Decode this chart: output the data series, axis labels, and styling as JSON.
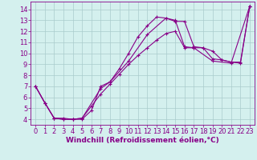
{
  "background_color": "#d4f0ee",
  "grid_color": "#aacccc",
  "line_color": "#880088",
  "xlabel": "Windchill (Refroidissement éolien,°C)",
  "xlim": [
    -0.5,
    23.5
  ],
  "ylim": [
    3.5,
    14.7
  ],
  "yticks": [
    4,
    5,
    6,
    7,
    8,
    9,
    10,
    11,
    12,
    13,
    14
  ],
  "xticks": [
    0,
    1,
    2,
    3,
    4,
    5,
    6,
    7,
    8,
    9,
    10,
    11,
    12,
    13,
    14,
    15,
    16,
    17,
    18,
    19,
    20,
    21,
    22,
    23
  ],
  "line1_x": [
    0,
    1,
    2,
    3,
    4,
    5,
    6,
    7,
    8,
    9,
    10,
    11,
    12,
    13,
    14,
    15,
    16,
    17,
    18,
    19,
    20,
    21,
    22,
    23
  ],
  "line1_y": [
    7.0,
    5.5,
    4.1,
    4.1,
    4.0,
    4.0,
    4.8,
    7.0,
    7.4,
    8.6,
    10.0,
    11.5,
    12.5,
    13.3,
    13.2,
    12.9,
    12.9,
    10.6,
    10.5,
    9.5,
    9.4,
    9.2,
    9.2,
    14.3
  ],
  "line2_x": [
    0,
    1,
    2,
    3,
    4,
    5,
    7,
    8,
    10,
    12,
    14,
    15,
    16,
    17,
    19,
    21,
    23
  ],
  "line2_y": [
    7.0,
    5.5,
    4.1,
    4.0,
    4.0,
    4.1,
    6.8,
    7.4,
    9.3,
    11.7,
    13.2,
    13.0,
    10.6,
    10.5,
    9.3,
    9.1,
    14.3
  ],
  "line3_x": [
    0,
    1,
    2,
    3,
    4,
    5,
    6,
    7,
    8,
    9,
    10,
    11,
    12,
    13,
    14,
    15,
    16,
    17,
    18,
    19,
    20,
    21,
    22,
    23
  ],
  "line3_y": [
    7.0,
    5.5,
    4.1,
    4.0,
    4.0,
    4.1,
    5.2,
    6.3,
    7.2,
    8.1,
    9.0,
    9.8,
    10.5,
    11.2,
    11.8,
    12.0,
    10.5,
    10.5,
    10.5,
    10.2,
    9.4,
    9.2,
    9.1,
    14.3
  ],
  "xlabel_fontsize": 6.5,
  "tick_fontsize": 6.0
}
